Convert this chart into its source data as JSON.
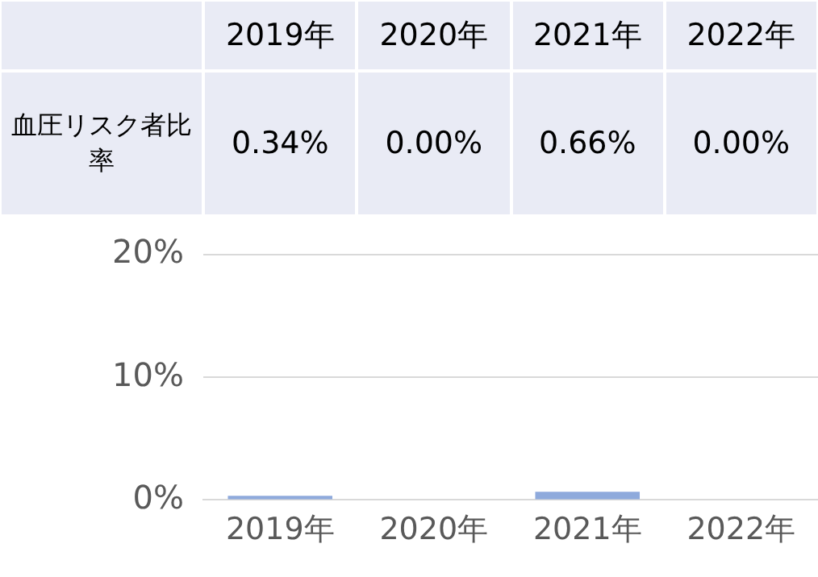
{
  "chart_data": {
    "type": "bar",
    "categories": [
      "2019年",
      "2020年",
      "2021年",
      "2022年"
    ],
    "series": [
      {
        "name": "血圧リスク者比率",
        "color": "#8faadc",
        "values": [
          0.34,
          0,
          0.66,
          0
        ],
        "value_labels": [
          "0.34%",
          "0.00%",
          "0.66%",
          "0.00%"
        ]
      }
    ],
    "ylim": [
      0,
      20
    ],
    "yticks": [
      {
        "value": 0,
        "label": "0%"
      },
      {
        "value": 10,
        "label": "10%"
      },
      {
        "value": 20,
        "label": "20%"
      }
    ],
    "grid": "y",
    "legend": false
  }
}
